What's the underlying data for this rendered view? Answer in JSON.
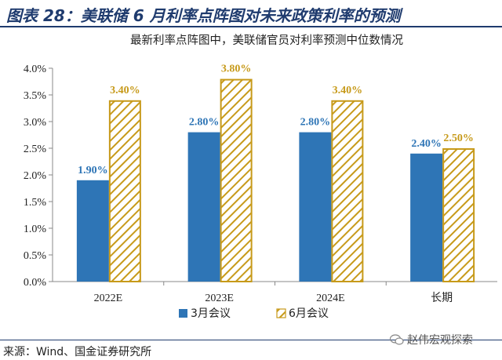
{
  "header": {
    "title": "图表 28：美联储 6 月利率点阵图对未来政策利率的预测"
  },
  "footer": {
    "source": "来源：Wind、国金证券研究所"
  },
  "watermark": {
    "text": "赵伟宏观探索"
  },
  "colors": {
    "series_1": "#2e75b6",
    "series_2_hatch": "#c79a1a",
    "label_1": "#2e75b6",
    "label_2": "#c79a1a",
    "header": "#1f3b6e"
  },
  "chart_data": {
    "type": "bar",
    "title": "最新利率点阵图中，美联储官员对利率预测中位数情况",
    "categories": [
      "2022E",
      "2023E",
      "2024E",
      "长期"
    ],
    "series": [
      {
        "name": "3月会议",
        "values": [
          1.9,
          2.8,
          2.8,
          2.4
        ],
        "labels": [
          "1.90%",
          "2.80%",
          "2.80%",
          "2.40%"
        ]
      },
      {
        "name": "6月会议",
        "values": [
          3.4,
          3.8,
          3.4,
          2.5
        ],
        "labels": [
          "3.40%",
          "3.80%",
          "3.40%",
          "2.50%"
        ]
      }
    ],
    "ylim": [
      0,
      4.0
    ],
    "yticks": [
      0,
      0.5,
      1.0,
      1.5,
      2.0,
      2.5,
      3.0,
      3.5,
      4.0
    ],
    "ytick_labels": [
      "0.0%",
      "0.5%",
      "1.0%",
      "1.5%",
      "2.0%",
      "2.5%",
      "3.0%",
      "3.5%",
      "4.0%"
    ],
    "xlabel": "",
    "ylabel": "",
    "grid": false,
    "legend_position": "bottom-center"
  }
}
